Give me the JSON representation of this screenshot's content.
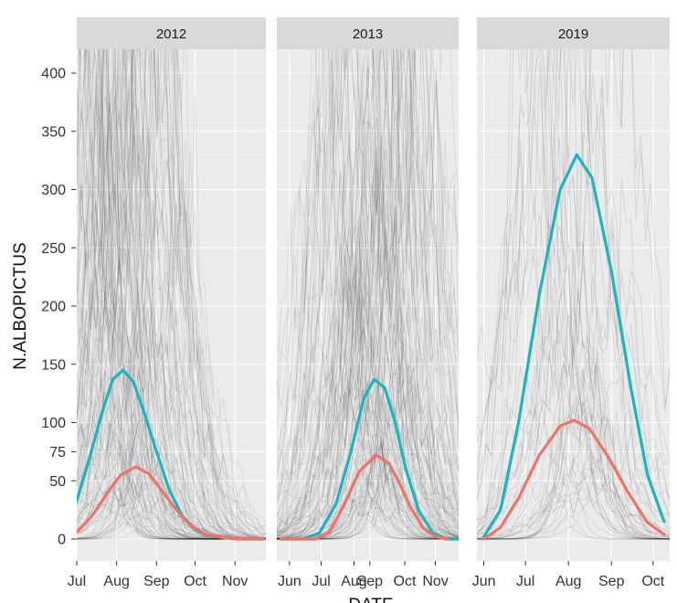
{
  "chart_data": {
    "type": "line",
    "ylabel": "N.ALBOPICTUS",
    "xlabel": "DATE",
    "y_ticks": [
      "0",
      "50",
      "75",
      "100",
      "150",
      "200",
      "250",
      "300",
      "350",
      "400"
    ],
    "y_tick_values": [
      0,
      50,
      75,
      100,
      150,
      200,
      250,
      300,
      350,
      400
    ],
    "ylim": [
      0,
      400
    ],
    "grid": true,
    "background": "#ebebeb",
    "strip_background": "#d9d9d9",
    "series_colors": {
      "teal": "#1bb5be",
      "salmon": "#ef7467",
      "trajectories": "#000000"
    },
    "panels": [
      {
        "label": "2012",
        "x_ticks": [
          "Jul",
          "Aug",
          "Sep",
          "Oct",
          "Nov"
        ],
        "x_tick_values": [
          0,
          31,
          62,
          92,
          123
        ],
        "xlim": [
          0,
          147
        ],
        "series": [
          {
            "color": "teal",
            "points": [
              [
                0,
                33
              ],
              [
                10,
                70
              ],
              [
                20,
                110
              ],
              [
                28,
                137
              ],
              [
                36,
                145
              ],
              [
                44,
                135
              ],
              [
                52,
                110
              ],
              [
                62,
                75
              ],
              [
                72,
                42
              ],
              [
                82,
                20
              ],
              [
                92,
                8
              ],
              [
                102,
                3
              ],
              [
                115,
                1
              ],
              [
                125,
                0
              ],
              [
                145,
                0
              ]
            ]
          },
          {
            "color": "salmon",
            "points": [
              [
                0,
                6
              ],
              [
                12,
                20
              ],
              [
                24,
                40
              ],
              [
                34,
                55
              ],
              [
                46,
                62
              ],
              [
                56,
                56
              ],
              [
                66,
                42
              ],
              [
                76,
                27
              ],
              [
                88,
                12
              ],
              [
                100,
                4
              ],
              [
                115,
                1
              ],
              [
                130,
                0
              ],
              [
                145,
                0
              ]
            ]
          }
        ]
      },
      {
        "label": "2013",
        "x_ticks": [
          "Jun",
          "Jul",
          "Aug",
          "Sep",
          "Oct",
          "Nov"
        ],
        "x_tick_values": [
          0,
          30,
          61,
          76,
          109,
          138
        ],
        "xlim": [
          -12,
          160
        ],
        "series": [
          {
            "color": "teal",
            "points": [
              [
                -8,
                0
              ],
              [
                12,
                0
              ],
              [
                28,
                5
              ],
              [
                44,
                30
              ],
              [
                58,
                75
              ],
              [
                70,
                120
              ],
              [
                80,
                137
              ],
              [
                90,
                130
              ],
              [
                100,
                100
              ],
              [
                110,
                60
              ],
              [
                122,
                25
              ],
              [
                135,
                6
              ],
              [
                148,
                0
              ],
              [
                160,
                0
              ]
            ]
          },
          {
            "color": "salmon",
            "points": [
              [
                -8,
                0
              ],
              [
                25,
                0
              ],
              [
                38,
                6
              ],
              [
                52,
                30
              ],
              [
                66,
                58
              ],
              [
                82,
                72
              ],
              [
                94,
                65
              ],
              [
                104,
                48
              ],
              [
                114,
                28
              ],
              [
                126,
                10
              ],
              [
                138,
                2
              ],
              [
                150,
                0
              ]
            ]
          }
        ]
      },
      {
        "label": "2019",
        "x_ticks": [
          "Jun",
          "Jul",
          "Aug",
          "Sep",
          "Oct"
        ],
        "x_tick_values": [
          0,
          30,
          61,
          92,
          122
        ],
        "xlim": [
          -5,
          134
        ],
        "series": [
          {
            "color": "teal",
            "points": [
              [
                0,
                2
              ],
              [
                12,
                25
              ],
              [
                25,
                100
              ],
              [
                40,
                210
              ],
              [
                55,
                300
              ],
              [
                67,
                330
              ],
              [
                78,
                310
              ],
              [
                92,
                230
              ],
              [
                106,
                130
              ],
              [
                118,
                55
              ],
              [
                130,
                15
              ]
            ]
          },
          {
            "color": "salmon",
            "points": [
              [
                0,
                0
              ],
              [
                12,
                10
              ],
              [
                25,
                35
              ],
              [
                40,
                72
              ],
              [
                55,
                97
              ],
              [
                65,
                102
              ],
              [
                76,
                95
              ],
              [
                90,
                70
              ],
              [
                104,
                40
              ],
              [
                118,
                14
              ],
              [
                130,
                4
              ]
            ]
          }
        ]
      }
    ]
  }
}
